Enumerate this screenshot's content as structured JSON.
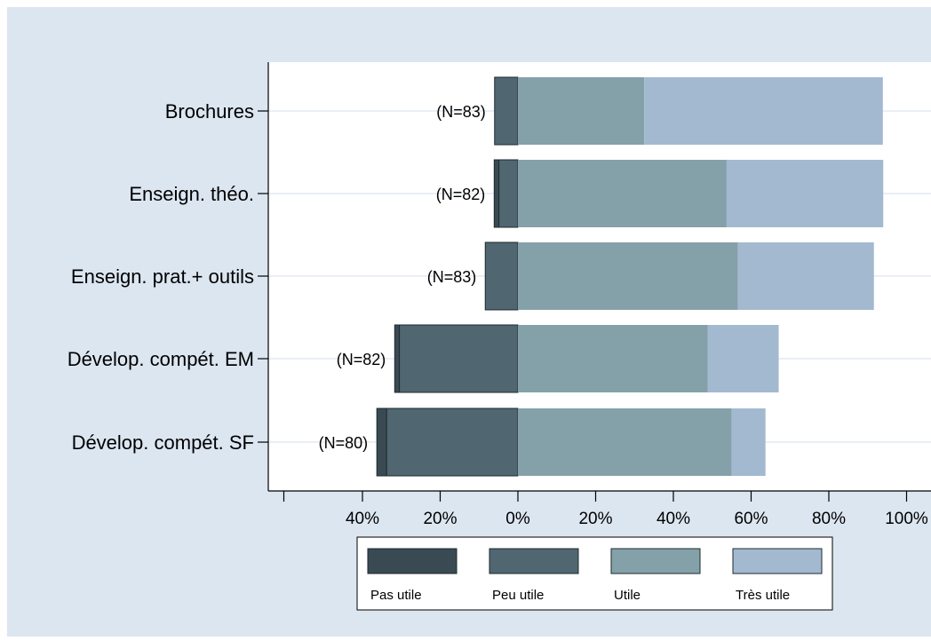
{
  "chart_data": {
    "type": "bar",
    "orientation": "horizontal",
    "stacked": "diverging",
    "title": "",
    "xlabel": "",
    "ylabel": "",
    "xlim": [
      -0.6,
      1.0
    ],
    "x_ticks": [
      -0.4,
      -0.2,
      0,
      0.2,
      0.4,
      0.6,
      0.8,
      1.0
    ],
    "x_tick_labels": [
      "40%",
      "20%",
      "0%",
      "20%",
      "40%",
      "60%",
      "80%",
      "100%"
    ],
    "categories": [
      "Brochures",
      "Enseign. théo.",
      "Enseign. prat.+ outils",
      "Dévelop. compét. EM",
      "Dévelop. compét. SF"
    ],
    "n_labels": [
      "(N=83)",
      "(N=82)",
      "(N=83)",
      "(N=82)",
      "(N=80)"
    ],
    "series": [
      {
        "name": "Pas utile",
        "color": "#3a4a52",
        "side": "negative",
        "values": [
          0.0,
          0.012,
          0.0,
          0.012,
          0.025
        ]
      },
      {
        "name": "Peu utile",
        "color": "#506670",
        "side": "negative",
        "values": [
          0.06,
          0.049,
          0.084,
          0.305,
          0.338
        ]
      },
      {
        "name": "Utile",
        "color": "#84a1a9",
        "side": "positive",
        "values": [
          0.325,
          0.537,
          0.566,
          0.488,
          0.55
        ]
      },
      {
        "name": "Très utile",
        "color": "#a3b9cf",
        "side": "positive",
        "values": [
          0.614,
          0.403,
          0.35,
          0.183,
          0.087
        ]
      }
    ],
    "grid": true,
    "legend_position": "bottom"
  },
  "colors": {
    "outer_background": "#dce6f1",
    "plot_background": "#ffffff",
    "gridline": "#e3eaf2",
    "axis": "#000000"
  }
}
